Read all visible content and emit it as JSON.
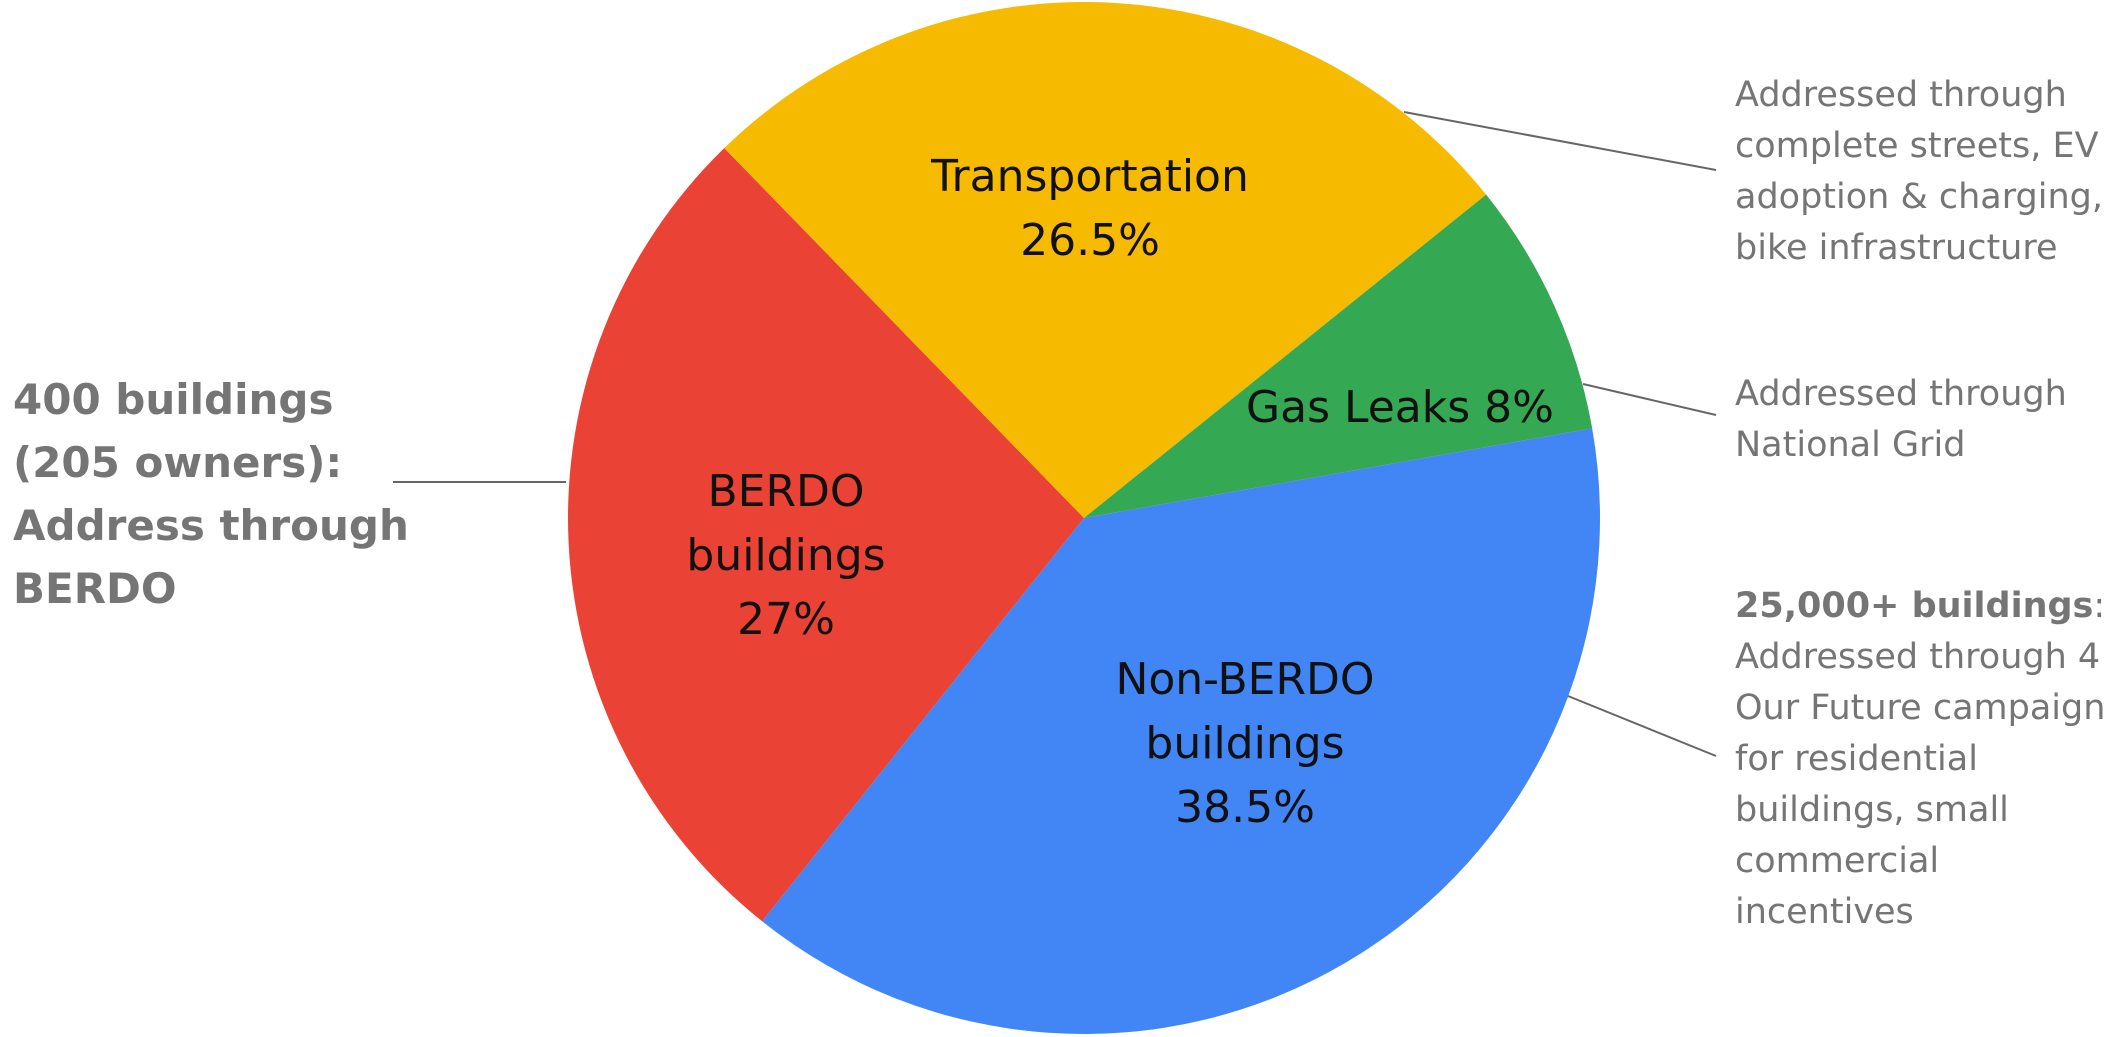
{
  "chart_data": {
    "type": "pie",
    "categories": [
      "Non-BERDO buildings",
      "BERDO buildings",
      "Transportation",
      "Gas Leaks"
    ],
    "values": [
      38.5,
      27,
      26.5,
      8
    ],
    "value_labels": [
      "38.5%",
      "27%",
      "26.5%",
      "8%"
    ],
    "colors": [
      "#4285f4",
      "#ea4335",
      "#f6bb00",
      "#34a853"
    ],
    "annotations": [
      {
        "bold": "400 buildings (205 owners): Address through BERDO"
      },
      {
        "text": "Addressed through complete streets, EV adoption & charging, bike infrastructure"
      },
      {
        "text": "Addressed through National Grid"
      },
      {
        "bold": "25,000+ buildings",
        "text": ": Addressed through 4 Our Future campaign for residential buildings, small commercial incentives"
      }
    ]
  }
}
